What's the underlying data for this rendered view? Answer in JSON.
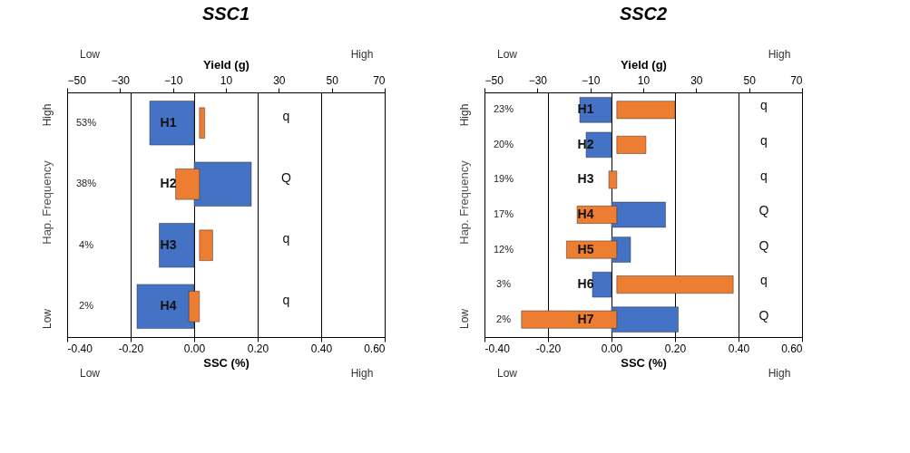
{
  "chart_data": [
    {
      "type": "bar",
      "orientation": "horizontal",
      "title": "SSC1",
      "xlabel": "SSC (%)",
      "x2label": "Yield (g)",
      "ylabel": "Hap. Frequency",
      "categories": [
        "H1",
        "H2",
        "H3",
        "H4"
      ],
      "series": [
        {
          "color": "#4472c4",
          "values": [
            -0.14,
            0.18,
            -0.11,
            -0.18
          ]
        },
        {
          "color": "#ed7d31",
          "axis": "x2",
          "values": [
            2,
            -9,
            5,
            -4
          ]
        }
      ],
      "xlim": [
        -0.4,
        0.6
      ],
      "xticks": [
        {
          "value": -0.4,
          "label": "-0.40"
        },
        {
          "value": -0.2,
          "label": "-0.20"
        },
        {
          "value": 0,
          "label": "0.00"
        },
        {
          "value": 0.2,
          "label": "0.20"
        },
        {
          "value": 0.4,
          "label": "0.40"
        },
        {
          "value": 0.6,
          "label": "0.60"
        }
      ],
      "x2lim": [
        -50,
        70
      ],
      "x2ticks": [
        -50,
        -30,
        -10,
        10,
        30,
        50,
        70
      ],
      "grid": "x",
      "annotations": [
        "Low",
        "High",
        "Low",
        "High",
        "High",
        "Low",
        "53%",
        "38%",
        "4%",
        "2%",
        "q",
        "Q",
        "q",
        "q"
      ]
    },
    {
      "type": "bar",
      "orientation": "horizontal",
      "title": "SSC2",
      "xlabel": "SSC (%)",
      "x2label": "Yield (g)",
      "ylabel": "Hap. Frequency",
      "categories": [
        "H1",
        "H2",
        "H3",
        "H4",
        "H5",
        "H6",
        "H7"
      ],
      "series": [
        {
          "color": "#4472c4",
          "values": [
            -0.1,
            -0.08,
            null,
            0.17,
            0.06,
            -0.06,
            0.21
          ]
        },
        {
          "color": "#ed7d31",
          "axis": "x2",
          "values": [
            22,
            11,
            -3,
            -15,
            -19,
            44,
            -36
          ]
        }
      ],
      "xlim": [
        -0.4,
        0.6
      ],
      "xticks": [
        {
          "value": -0.4,
          "label": "-0.40"
        },
        {
          "value": -0.2,
          "label": "-0.20"
        },
        {
          "value": 0,
          "label": "0.00"
        },
        {
          "value": 0.2,
          "label": "0.20"
        },
        {
          "value": 0.4,
          "label": "0.40"
        },
        {
          "value": 0.6,
          "label": "0.60"
        }
      ],
      "x2lim": [
        -50,
        70
      ],
      "x2ticks": [
        -50,
        -30,
        -10,
        10,
        30,
        50,
        70
      ],
      "grid": "x",
      "annotations": [
        "Low",
        "High",
        "Low",
        "High",
        "High",
        "Low",
        "23%",
        "20%",
        "19%",
        "17%",
        "12%",
        "3%",
        "2%",
        "q",
        "q",
        "q",
        "Q",
        "Q",
        "q",
        "Q"
      ]
    }
  ]
}
